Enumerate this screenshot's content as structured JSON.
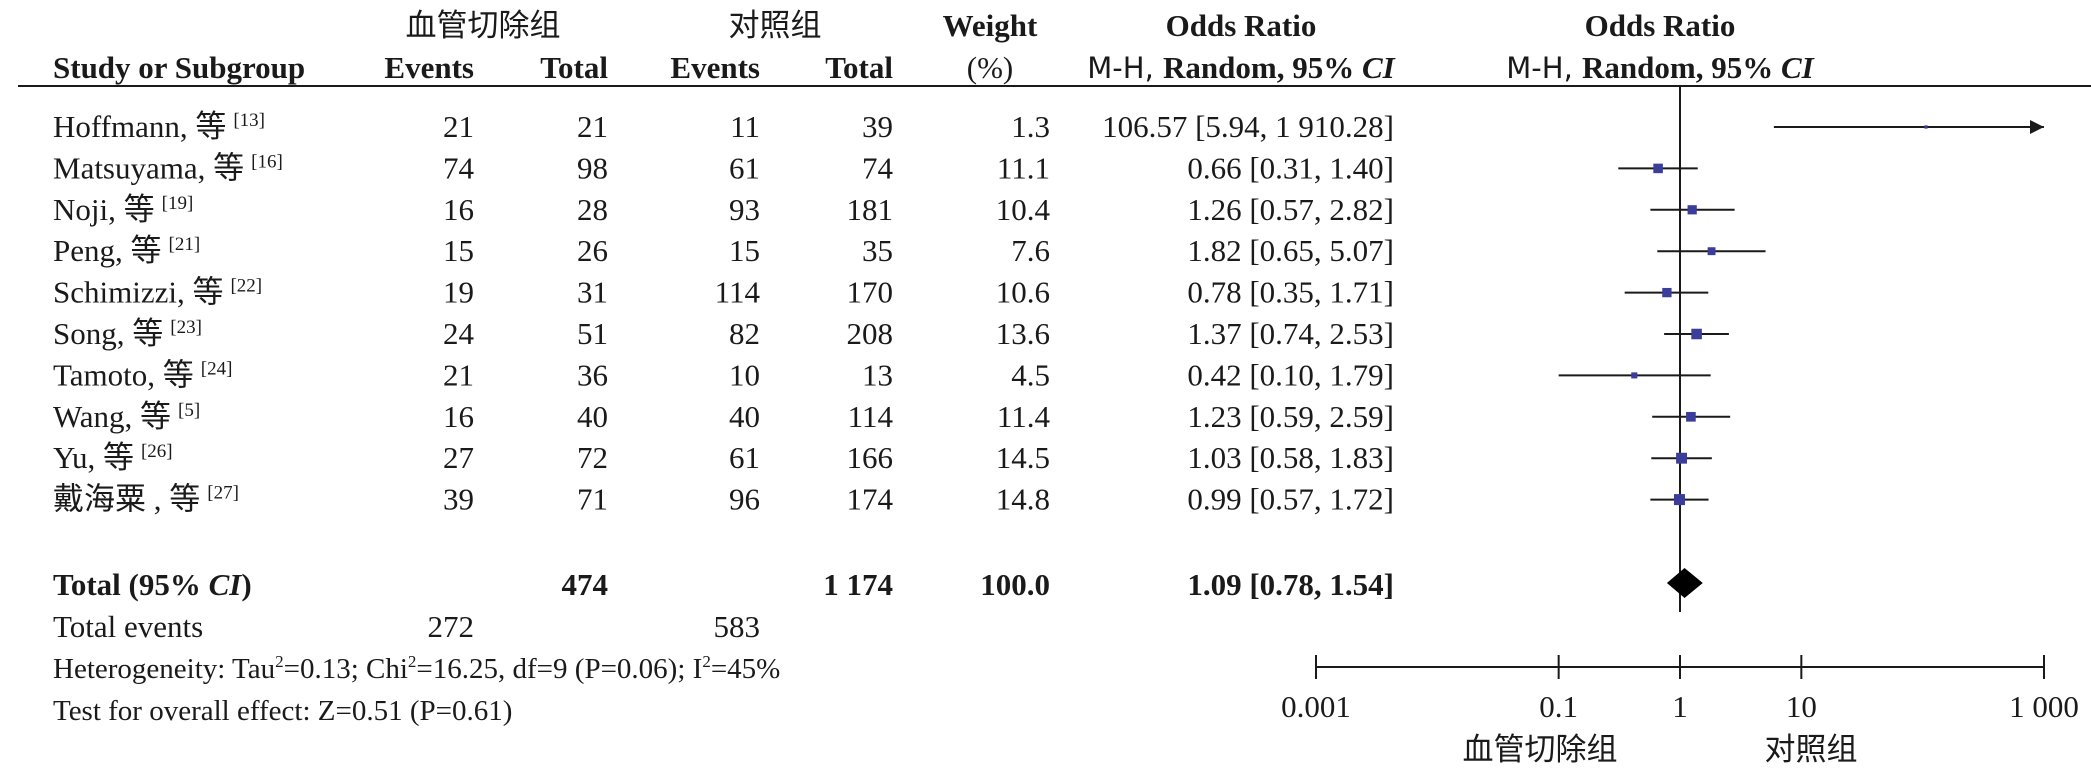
{
  "chart_data": {
    "type": "forest",
    "header": {
      "group1": "血管切除组",
      "group2": "对照组",
      "study_col": "Study or Subgroup",
      "events": "Events",
      "total": "Total",
      "weight_top": "Weight",
      "weight_bottom": "(%)",
      "or_title": "Odds Ratio",
      "or_method_prefix": "M-H, ",
      "or_method_rest": "Random, 95% ",
      "ci": "CI",
      "plot_title": "Odds Ratio",
      "plot_method_prefix": "M-H, ",
      "plot_method_rest": "Random, 95% "
    },
    "studies": [
      {
        "name": "Hoffmann, 等",
        "ref": "[13]",
        "e1": "21",
        "t1": "21",
        "e2": "11",
        "t2": "39",
        "weight": "1.3",
        "or_text": "106.57 [5.94, 1 910.28]",
        "or": 106.57,
        "lo": 5.94,
        "hi": 1910.28
      },
      {
        "name": "Matsuyama, 等",
        "ref": "[16]",
        "e1": "74",
        "t1": "98",
        "e2": "61",
        "t2": "74",
        "weight": "11.1",
        "or_text": "0.66 [0.31, 1.40]",
        "or": 0.66,
        "lo": 0.31,
        "hi": 1.4
      },
      {
        "name": "Noji, 等",
        "ref": "[19]",
        "e1": "16",
        "t1": "28",
        "e2": "93",
        "t2": "181",
        "weight": "10.4",
        "or_text": "1.26 [0.57, 2.82]",
        "or": 1.26,
        "lo": 0.57,
        "hi": 2.82
      },
      {
        "name": "Peng, 等",
        "ref": "[21]",
        "e1": "15",
        "t1": "26",
        "e2": "15",
        "t2": "35",
        "weight": "7.6",
        "or_text": "1.82 [0.65, 5.07]",
        "or": 1.82,
        "lo": 0.65,
        "hi": 5.07
      },
      {
        "name": "Schimizzi, 等",
        "ref": "[22]",
        "e1": "19",
        "t1": "31",
        "e2": "114",
        "t2": "170",
        "weight": "10.6",
        "or_text": "0.78 [0.35, 1.71]",
        "or": 0.78,
        "lo": 0.35,
        "hi": 1.71
      },
      {
        "name": "Song, 等",
        "ref": "[23]",
        "e1": "24",
        "t1": "51",
        "e2": "82",
        "t2": "208",
        "weight": "13.6",
        "or_text": "1.37 [0.74, 2.53]",
        "or": 1.37,
        "lo": 0.74,
        "hi": 2.53
      },
      {
        "name": "Tamoto, 等",
        "ref": "[24]",
        "e1": "21",
        "t1": "36",
        "e2": "10",
        "t2": "13",
        "weight": "4.5",
        "or_text": "0.42 [0.10, 1.79]",
        "or": 0.42,
        "lo": 0.1,
        "hi": 1.79
      },
      {
        "name": "Wang, 等",
        "ref": "[5]",
        "e1": "16",
        "t1": "40",
        "e2": "40",
        "t2": "114",
        "weight": "11.4",
        "or_text": "1.23 [0.59, 2.59]",
        "or": 1.23,
        "lo": 0.59,
        "hi": 2.59
      },
      {
        "name": "Yu, 等",
        "ref": "[26]",
        "e1": "27",
        "t1": "72",
        "e2": "61",
        "t2": "166",
        "weight": "14.5",
        "or_text": "1.03 [0.58, 1.83]",
        "or": 1.03,
        "lo": 0.58,
        "hi": 1.83
      },
      {
        "name": "戴海粟 , 等",
        "ref": "[27]",
        "e1": "39",
        "t1": "71",
        "e2": "96",
        "t2": "174",
        "weight": "14.8",
        "or_text": "0.99 [0.57, 1.72]",
        "or": 0.99,
        "lo": 0.57,
        "hi": 1.72
      }
    ],
    "total": {
      "label_prefix": "Total (95% ",
      "label_ci": "CI",
      "label_suffix": ")",
      "t1": "474",
      "t2": "1 174",
      "weight": "100.0",
      "or_text": "1.09 [0.78, 1.54]",
      "or": 1.09,
      "lo": 0.78,
      "hi": 1.54
    },
    "total_events": {
      "label": "Total events",
      "e1": "272",
      "e2": "583"
    },
    "heterogeneity": {
      "prefix": "Heterogeneity: Tau",
      "sup1": "2",
      "mid1": "=0.13; Chi",
      "sup2": "2",
      "mid2": "=16.25, df=9 (P=0.06); I",
      "sup3": "2",
      "suffix": "=45%"
    },
    "overall_effect": "Test for overall effect: Z=0.51 (P=0.61)",
    "x_axis": {
      "scale": "log",
      "range": [
        0.001,
        1000
      ],
      "ticks": [
        0.001,
        0.1,
        1,
        10,
        1000
      ],
      "tick_labels": [
        "0.001",
        "0.1",
        "1",
        "10",
        "1 000"
      ],
      "favours_left": "血管切除组",
      "favours_right": "对照组"
    },
    "colors": {
      "marker": "#3a3d9a",
      "line": "#1a1a1a",
      "diamond": "#000000"
    }
  }
}
